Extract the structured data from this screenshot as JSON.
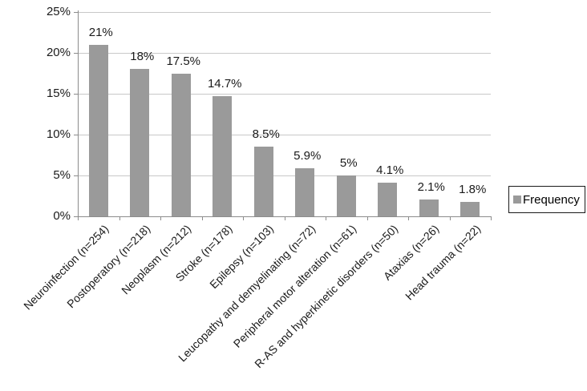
{
  "chart_data": {
    "type": "bar",
    "title": "",
    "xlabel": "",
    "ylabel": "",
    "categories": [
      "Neuroinfection (n=254)",
      "Postoperatory (n=218)",
      "Neoplasm (n=212)",
      "Stroke (n=178)",
      "Epilepsy (n=103)",
      "Leucopathy and demyelinating (n=72)",
      "Peripheral motor alteration (n=61)",
      "R-AS and hyperkinetic disorders (n=50)",
      "Ataxias (n=26)",
      "Head trauma (n=22)"
    ],
    "values": [
      21,
      18,
      17.5,
      14.7,
      8.5,
      5.9,
      5,
      4.1,
      2.1,
      1.8
    ],
    "data_labels": [
      "21%",
      "18%",
      "17.5%",
      "14.7%",
      "8.5%",
      "5.9%",
      "5%",
      "4.1%",
      "2.1%",
      "1.8%"
    ],
    "y_tick_labels": [
      "25%",
      "20%",
      "15%",
      "10%",
      "5%",
      "0%"
    ],
    "ylim": [
      0,
      25
    ],
    "grid": true,
    "legend": {
      "label": "Frequency",
      "position": "right"
    },
    "colors": {
      "bar": "#9a9a9a",
      "gridline": "#c8c8c8",
      "axis": "#8c8c8c",
      "text": "#1a1a1a",
      "legend_border": "#1a1a1a",
      "background": "#ffffff"
    }
  }
}
